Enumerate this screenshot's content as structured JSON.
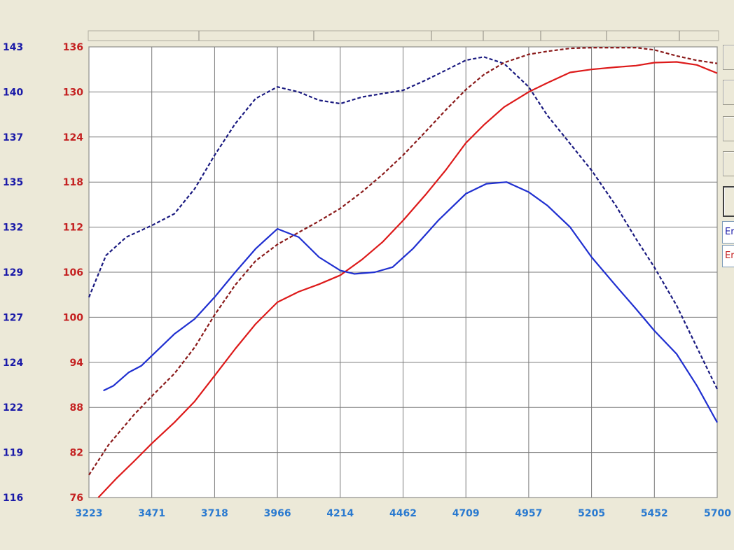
{
  "colors": {
    "background": "#ece9d8",
    "plot_bg": "#ffffff",
    "grid": "#7a7a7a",
    "left_axis": "#1a1aa8",
    "right_axis": "#c42020",
    "x_axis": "#2a7ad0",
    "series_blue": "#1f2fd0",
    "series_blue_dashed": "#1a1a80",
    "series_red": "#dd1a1a",
    "series_red_dashed": "#8a1a1a"
  },
  "side_panel": {
    "legend_blue_text": "Er",
    "legend_red_text": "Er"
  },
  "chart_data": {
    "type": "line",
    "title": "",
    "xlabel": "",
    "x_ticks": [
      "3223",
      "3471",
      "3718",
      "3966",
      "4214",
      "4462",
      "4709",
      "4957",
      "5205",
      "5452",
      "5700"
    ],
    "xlim": [
      3223,
      5700
    ],
    "y_left_ticks": [
      "143",
      "140",
      "137",
      "135",
      "132",
      "129",
      "127",
      "124",
      "122",
      "119",
      "116"
    ],
    "y_left_lim": [
      116,
      143
    ],
    "y_right_ticks": [
      "136",
      "130",
      "124",
      "118",
      "112",
      "106",
      "100",
      "94",
      "88",
      "82",
      "76"
    ],
    "y_right_lim": [
      76,
      136
    ],
    "grid": true,
    "series": [
      {
        "axis": "left",
        "color_key": "series_blue_dashed",
        "dashed": true,
        "x": [
          3223,
          3290,
          3370,
          3471,
          3560,
          3640,
          3718,
          3800,
          3880,
          3966,
          4050,
          4130,
          4214,
          4300,
          4380,
          4462,
          4550,
          4630,
          4709,
          4780,
          4860,
          4957,
          5030,
          5120,
          5205,
          5300,
          5380,
          5452,
          5540,
          5620,
          5700
        ],
        "y": [
          128.0,
          130.5,
          131.6,
          132.3,
          133.0,
          134.5,
          136.5,
          138.4,
          139.9,
          140.6,
          140.3,
          139.8,
          139.6,
          140.0,
          140.2,
          140.4,
          141.0,
          141.6,
          142.2,
          142.4,
          142.0,
          140.6,
          138.9,
          137.2,
          135.6,
          133.5,
          131.5,
          129.8,
          127.5,
          125.0,
          122.5
        ]
      },
      {
        "axis": "right",
        "color_key": "series_red_dashed",
        "dashed": true,
        "x": [
          3223,
          3300,
          3400,
          3471,
          3560,
          3640,
          3718,
          3800,
          3880,
          3966,
          4050,
          4130,
          4214,
          4300,
          4380,
          4462,
          4550,
          4630,
          4709,
          4780,
          4860,
          4957,
          5030,
          5120,
          5205,
          5300,
          5380,
          5452,
          5540,
          5620,
          5700
        ],
        "y": [
          79.0,
          83.0,
          87.0,
          89.5,
          92.5,
          96.0,
          100.3,
          104.3,
          107.5,
          109.7,
          111.3,
          112.8,
          114.5,
          116.7,
          119.0,
          121.6,
          124.7,
          127.6,
          130.3,
          132.3,
          133.9,
          135.0,
          135.4,
          135.8,
          135.9,
          135.9,
          135.9,
          135.6,
          134.8,
          134.2,
          133.8
        ]
      },
      {
        "axis": "right",
        "color_key": "series_red",
        "dashed": false,
        "x": [
          3260,
          3330,
          3400,
          3471,
          3560,
          3640,
          3718,
          3800,
          3880,
          3966,
          4050,
          4130,
          4214,
          4300,
          4380,
          4462,
          4550,
          4630,
          4709,
          4780,
          4860,
          4957,
          5030,
          5120,
          5205,
          5300,
          5380,
          5452,
          5540,
          5620,
          5700
        ],
        "y": [
          76.0,
          78.5,
          80.8,
          83.2,
          86.0,
          88.8,
          92.2,
          95.8,
          99.1,
          102.0,
          103.4,
          104.4,
          105.6,
          107.7,
          110.0,
          112.9,
          116.3,
          119.6,
          123.2,
          125.6,
          128.0,
          130.0,
          131.2,
          132.6,
          133.0,
          133.3,
          133.5,
          133.9,
          134.0,
          133.6,
          132.5
        ]
      },
      {
        "axis": "left",
        "color_key": "series_blue",
        "dashed": false,
        "x": [
          3280,
          3320,
          3380,
          3430,
          3471,
          3560,
          3640,
          3718,
          3800,
          3880,
          3966,
          4050,
          4130,
          4214,
          4270,
          4350,
          4420,
          4500,
          4600,
          4709,
          4790,
          4870,
          4957,
          5030,
          5120,
          5205,
          5300,
          5380,
          5452,
          5540,
          5620,
          5700
        ],
        "y": [
          122.4,
          122.7,
          123.5,
          123.9,
          124.5,
          125.8,
          126.7,
          128.0,
          129.5,
          130.9,
          132.1,
          131.6,
          130.4,
          129.6,
          129.4,
          129.5,
          129.8,
          130.9,
          132.6,
          134.2,
          134.8,
          134.9,
          134.3,
          133.5,
          132.2,
          130.4,
          128.7,
          127.3,
          126.0,
          124.6,
          122.7,
          120.5
        ]
      }
    ]
  }
}
